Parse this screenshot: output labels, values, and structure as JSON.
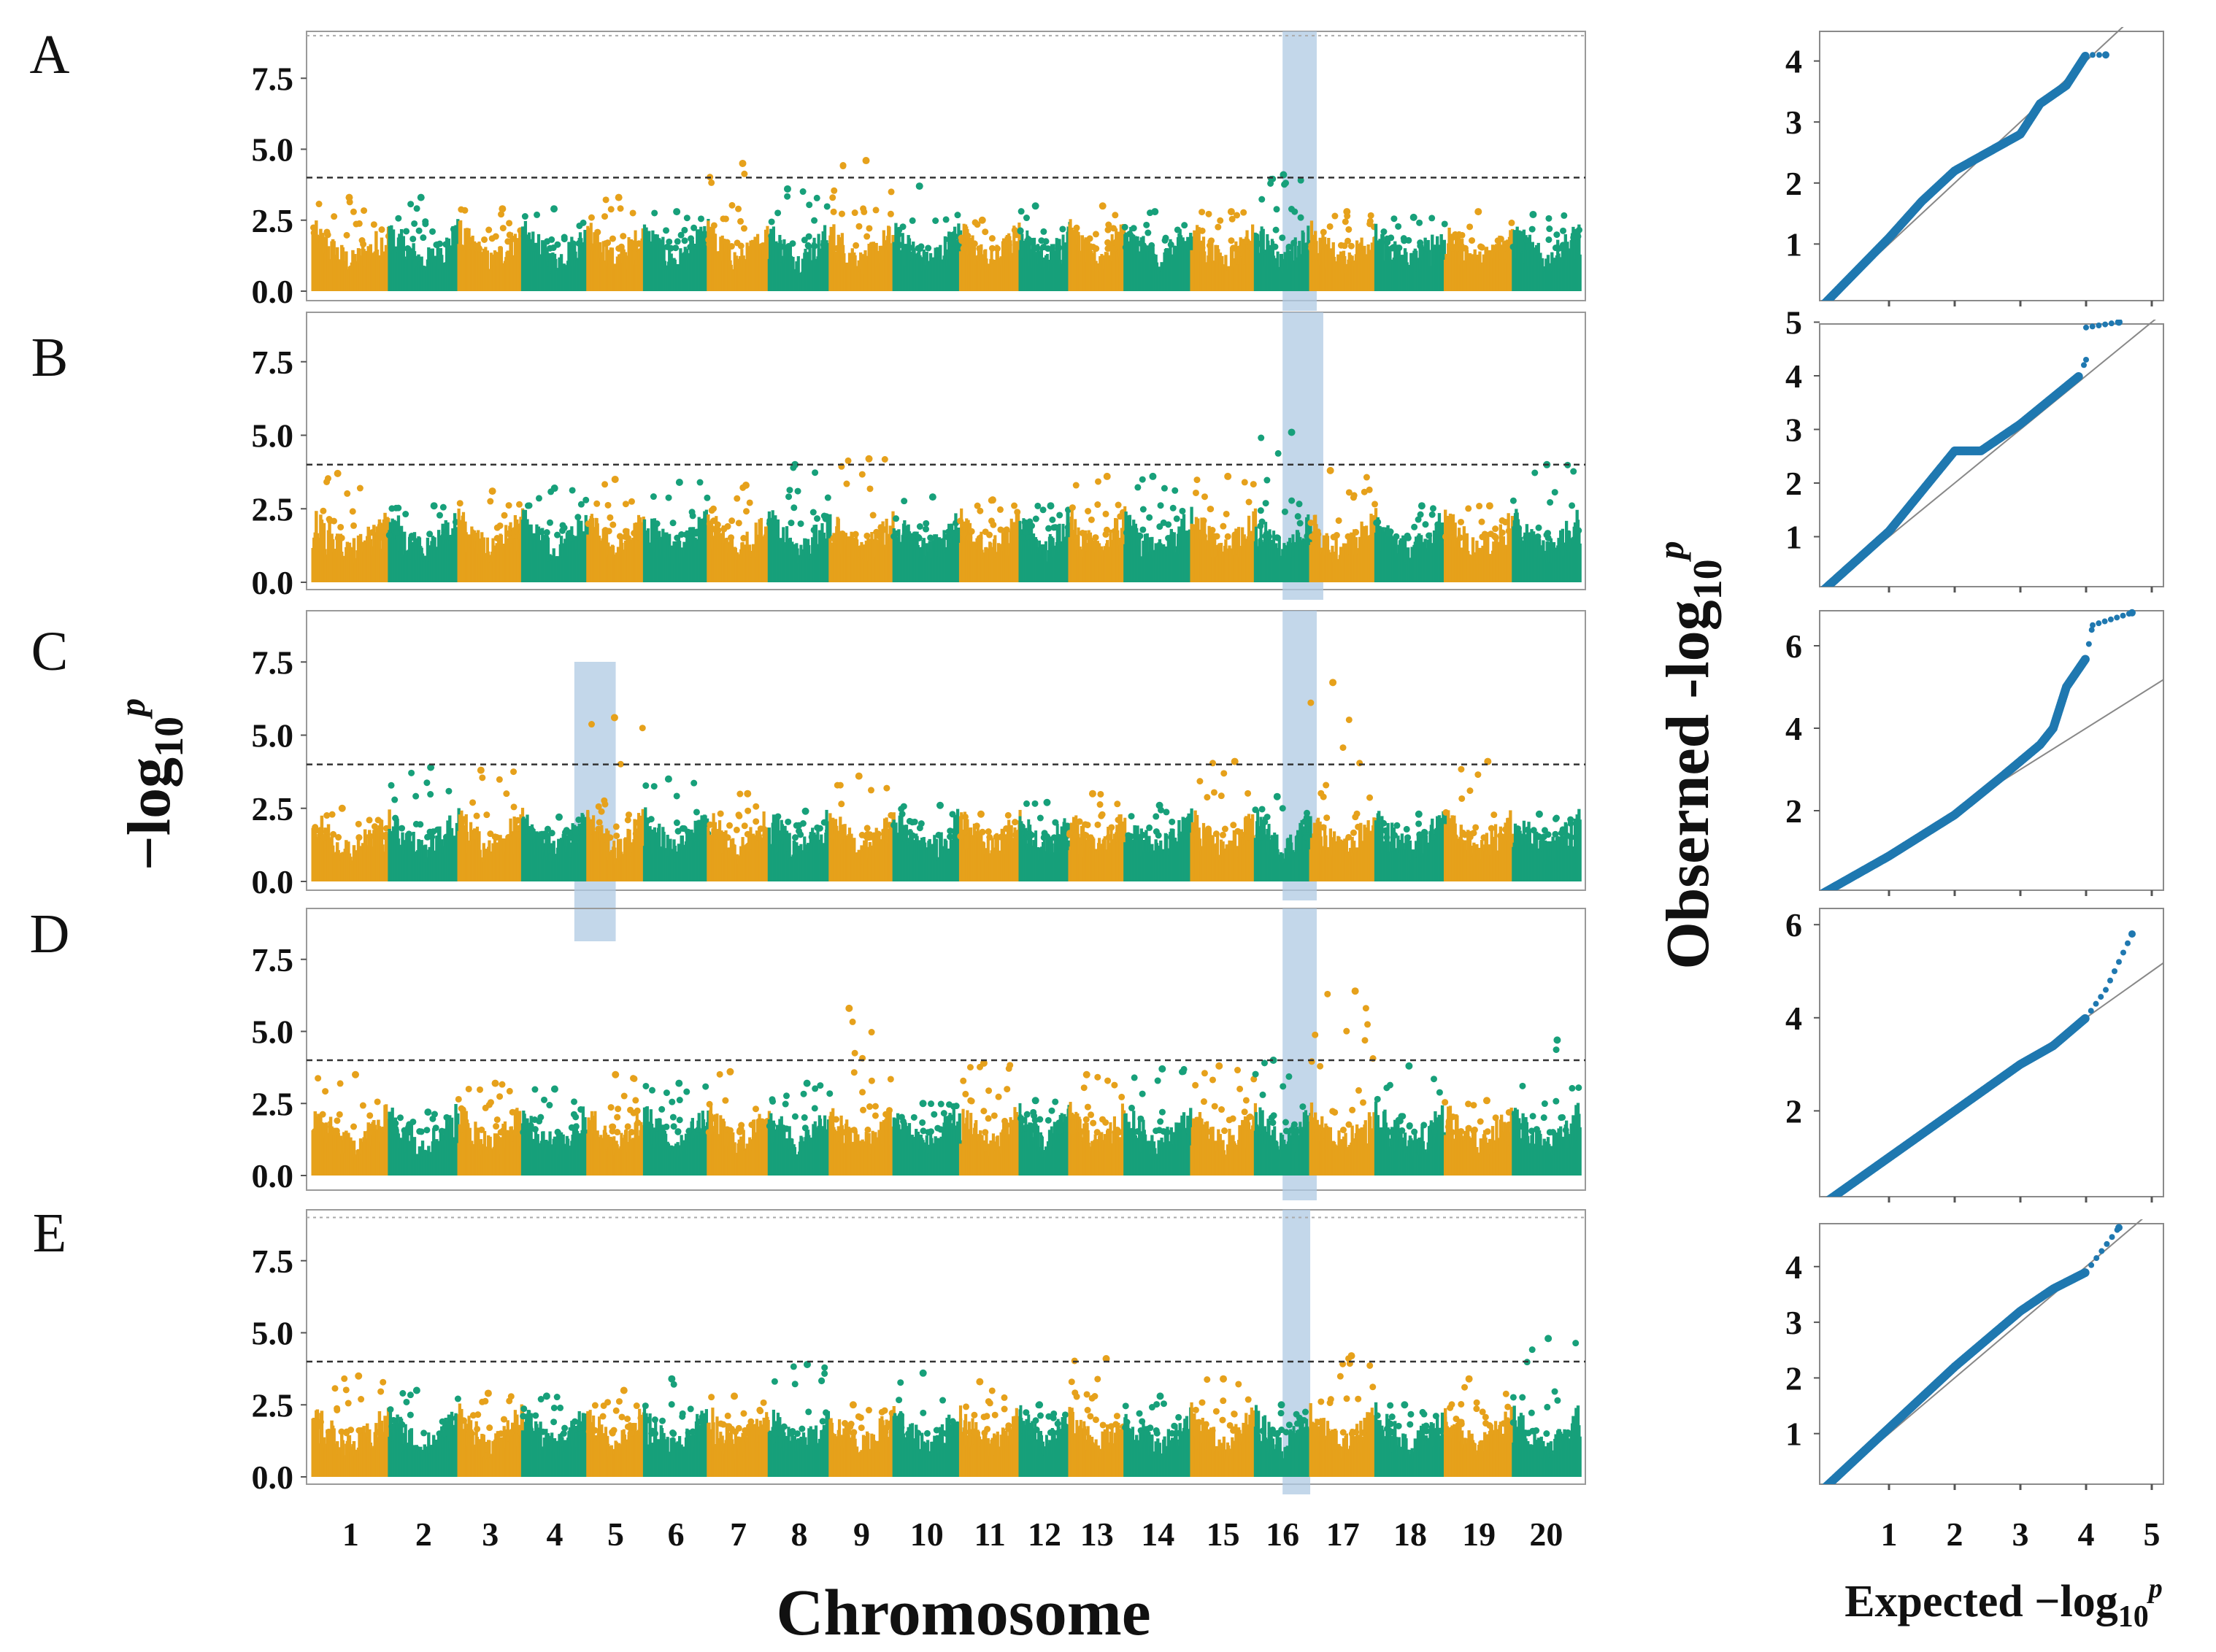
{
  "colors": {
    "odd_chrom": "#E6A11B",
    "even_chrom": "#17A07A",
    "highlight": "#AFC9E3",
    "qq_points": "#1F78B0",
    "expected_line": "#888888",
    "threshold": "#333333"
  },
  "labels": {
    "manhattan_ylabel": "−log",
    "manhattan_ylabel_sub": "10",
    "manhattan_ylabel_sup": "p",
    "manhattan_xlabel": "Chromosome",
    "qq_ylabel": "Obserned -log",
    "qq_ylabel_sub": "10",
    "qq_ylabel_sup": "p",
    "qq_xlabel": "Expected −log",
    "qq_xlabel_sub": "10",
    "qq_xlabel_sup": "p"
  },
  "chart_data": {
    "type": "scatter",
    "manhattan": {
      "chromosomes": [
        "1",
        "2",
        "3",
        "4",
        "5",
        "6",
        "7",
        "8",
        "9",
        "10",
        "11",
        "12",
        "13",
        "14",
        "15",
        "16",
        "17",
        "18",
        "19",
        "20"
      ],
      "chrom_relative_sizes": [
        54,
        49,
        45,
        46,
        40,
        45,
        43,
        43,
        45,
        47,
        42,
        35,
        39,
        47,
        45,
        39,
        46,
        49,
        48,
        47
      ],
      "yticks": [
        "0.0",
        "2.5",
        "5.0",
        "7.5"
      ],
      "ytick_values": [
        0,
        2.5,
        5.0,
        7.5
      ],
      "ylim": [
        0,
        9
      ],
      "panels": [
        {
          "label": "A",
          "threshold": 4.0,
          "upper_dotted": 9.0,
          "highlight_regions": [
            [
              16.5,
              17.1
            ]
          ],
          "chrom_max": [
            3.3,
            3.3,
            2.9,
            2.9,
            3.3,
            2.8,
            4.5,
            3.6,
            4.6,
            3.7,
            2.5,
            3.0,
            3.0,
            2.8,
            2.8,
            4.1,
            2.8,
            2.6,
            2.8,
            2.7
          ]
        },
        {
          "label": "B",
          "threshold": 4.0,
          "upper_dotted": null,
          "highlight_regions": [
            [
              16.5,
              17.2
            ]
          ],
          "chrom_max": [
            3.7,
            2.6,
            3.1,
            3.2,
            3.5,
            3.4,
            3.3,
            4.0,
            4.2,
            2.9,
            2.8,
            2.6,
            3.6,
            3.6,
            3.6,
            5.1,
            3.8,
            2.6,
            2.6,
            4.0
          ]
        },
        {
          "label": "C",
          "threshold": 4.0,
          "upper_dotted": null,
          "highlight_regions": [
            [
              4.8,
              5.5
            ],
            [
              16.5,
              17.1
            ]
          ],
          "chrom_max": [
            2.5,
            3.9,
            3.8,
            2.2,
            5.6,
            3.5,
            3.0,
            2.4,
            3.6,
            2.6,
            2.3,
            2.7,
            3.0,
            2.6,
            4.1,
            2.9,
            6.8,
            2.3,
            4.1,
            2.3
          ]
        },
        {
          "label": "D",
          "threshold": 4.0,
          "upper_dotted": null,
          "highlight_regions": [
            [
              16.5,
              17.1
            ]
          ],
          "chrom_max": [
            3.5,
            2.2,
            3.2,
            3.0,
            3.5,
            3.2,
            3.6,
            3.2,
            5.8,
            2.5,
            3.9,
            2.6,
            3.5,
            3.7,
            3.8,
            4.0,
            6.4,
            3.8,
            2.6,
            4.7
          ]
        },
        {
          "label": "E",
          "threshold": 4.0,
          "upper_dotted": 9.0,
          "highlight_regions": [
            [
              16.5,
              17.0
            ]
          ],
          "chrom_max": [
            3.5,
            3.0,
            2.9,
            2.8,
            3.0,
            3.4,
            2.8,
            3.9,
            2.5,
            3.6,
            3.3,
            2.5,
            4.1,
            2.8,
            3.4,
            2.5,
            4.2,
            2.5,
            3.4,
            4.8
          ]
        }
      ]
    },
    "qq": {
      "xticks": [
        "1",
        "2",
        "3",
        "4",
        "5"
      ],
      "xtick_values": [
        1,
        2,
        3,
        4,
        5
      ],
      "xlim": [
        0,
        5.2
      ],
      "panels": [
        {
          "label": "A",
          "yticks": [
            "1",
            "2",
            "3",
            "4"
          ],
          "ytick_values": [
            1,
            2,
            3,
            4
          ],
          "ylim": [
            0,
            4.6
          ],
          "observed": [
            [
              0,
              0
            ],
            [
              1,
              1.1
            ],
            [
              1.5,
              1.7
            ],
            [
              2,
              2.2
            ],
            [
              2.5,
              2.5
            ],
            [
              3,
              2.8
            ],
            [
              3.3,
              3.3
            ],
            [
              3.7,
              3.6
            ],
            [
              4,
              4.1
            ],
            [
              4.3,
              4.1
            ]
          ]
        },
        {
          "label": "B",
          "yticks": [
            "1",
            "2",
            "3",
            "4",
            "5"
          ],
          "ytick_values": [
            1,
            2,
            3,
            4,
            5
          ],
          "ylim": [
            0,
            5.1
          ],
          "observed": [
            [
              0,
              0
            ],
            [
              1,
              1.1
            ],
            [
              2,
              2.6
            ],
            [
              2.4,
              2.6
            ],
            [
              3,
              3.1
            ],
            [
              3.5,
              3.6
            ],
            [
              3.9,
              4.0
            ],
            [
              4,
              4.3
            ],
            [
              4.0,
              4.9
            ],
            [
              4.5,
              5.0
            ]
          ]
        },
        {
          "label": "C",
          "yticks": [
            "2",
            "4",
            "6"
          ],
          "ytick_values": [
            2,
            4,
            6
          ],
          "ylim": [
            0,
            6.8
          ],
          "observed": [
            [
              0,
              0
            ],
            [
              1,
              0.9
            ],
            [
              2,
              1.9
            ],
            [
              2.7,
              2.8
            ],
            [
              3.3,
              3.6
            ],
            [
              3.5,
              4.0
            ],
            [
              3.7,
              5.0
            ],
            [
              4,
              5.7
            ],
            [
              4.1,
              6.5
            ],
            [
              4.7,
              6.8
            ]
          ]
        },
        {
          "label": "D",
          "yticks": [
            "2",
            "4",
            "6"
          ],
          "ytick_values": [
            2,
            4,
            6
          ],
          "ylim": [
            0,
            6.2
          ],
          "observed": [
            [
              0,
              0
            ],
            [
              2,
              2.0
            ],
            [
              3,
              3.0
            ],
            [
              3.5,
              3.4
            ],
            [
              4,
              4.0
            ],
            [
              4.3,
              4.6
            ],
            [
              4.7,
              5.8
            ]
          ]
        },
        {
          "label": "E",
          "yticks": [
            "1",
            "2",
            "3",
            "4"
          ],
          "ytick_values": [
            1,
            2,
            3,
            4
          ],
          "ylim": [
            0,
            4.7
          ],
          "observed": [
            [
              0,
              0
            ],
            [
              1,
              1.1
            ],
            [
              2,
              2.2
            ],
            [
              3,
              3.2
            ],
            [
              3.5,
              3.6
            ],
            [
              4,
              3.9
            ],
            [
              4.5,
              4.7
            ]
          ]
        }
      ]
    }
  }
}
